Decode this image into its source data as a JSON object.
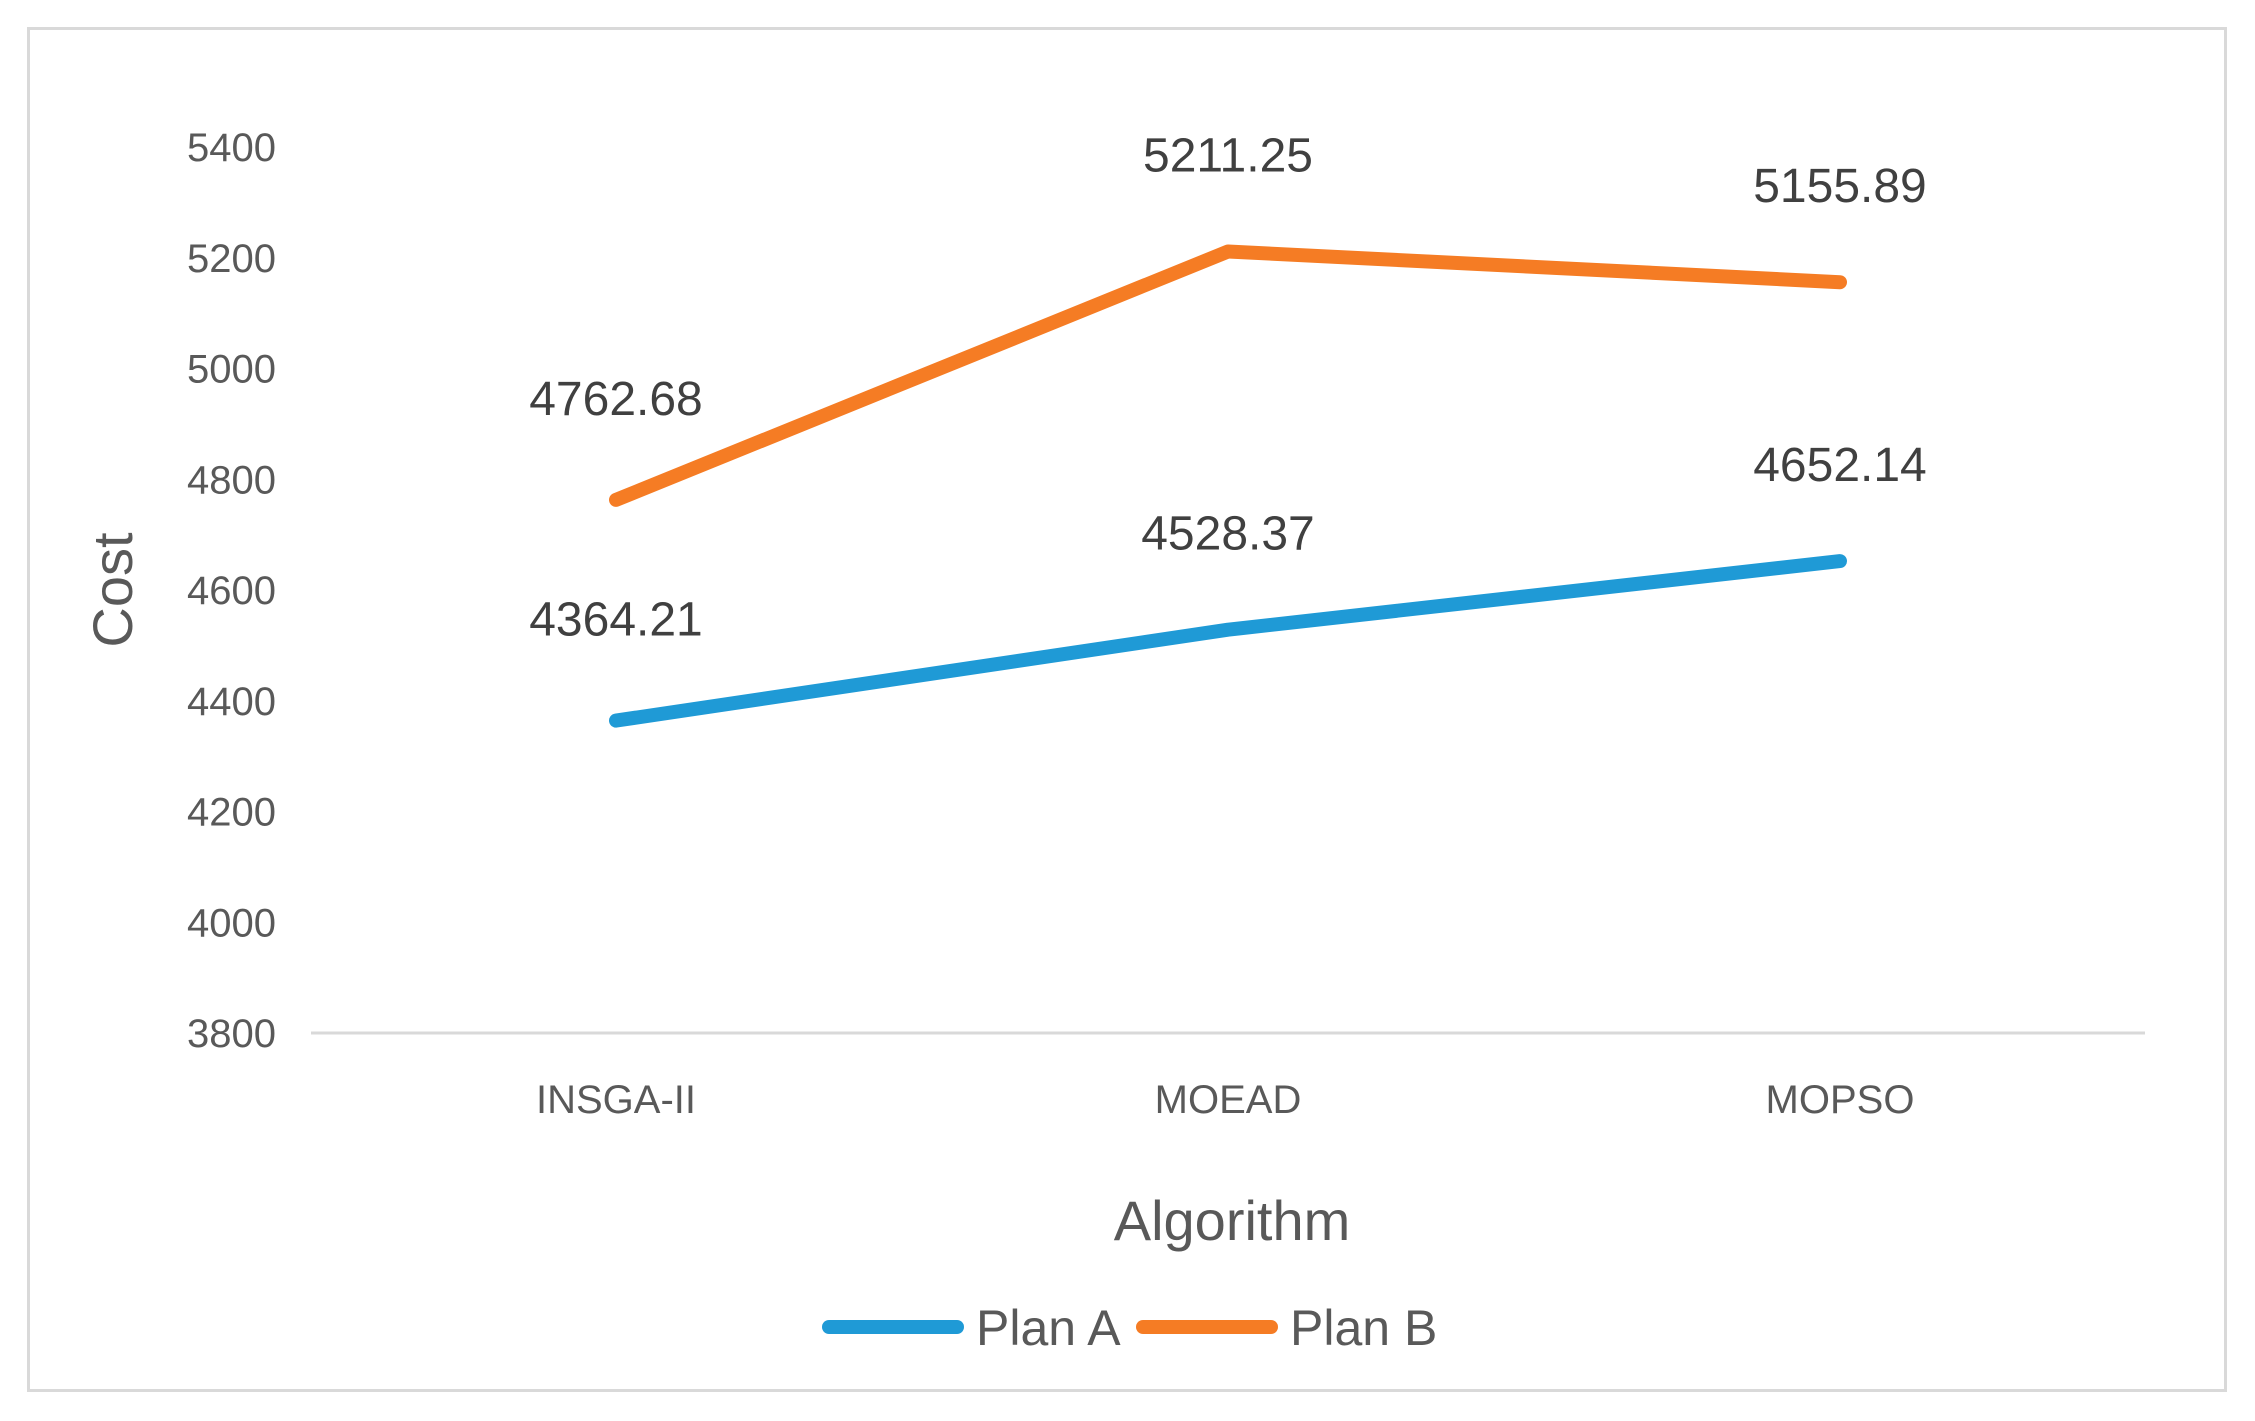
{
  "chart_data": {
    "type": "line",
    "title": "",
    "xlabel": "Algorithm",
    "ylabel": "Cost",
    "categories": [
      "INSGA-II",
      "MOEAD",
      "MOPSO"
    ],
    "ylim": [
      3800,
      5400
    ],
    "yticks": [
      "3800",
      "4000",
      "4200",
      "4400",
      "4600",
      "4800",
      "5000",
      "5200",
      "5400"
    ],
    "grid": false,
    "legend_position": "bottom",
    "series": [
      {
        "name": "Plan A",
        "color": "#1f9ad6",
        "values": [
          4364.21,
          4528.37,
          4652.14
        ],
        "labels": [
          "4364.21",
          "4528.37",
          "4652.14"
        ]
      },
      {
        "name": "Plan B",
        "color": "#f57c24",
        "values": [
          4762.68,
          5211.25,
          5155.89
        ],
        "labels": [
          "4762.68",
          "5211.25",
          "5155.89"
        ]
      }
    ]
  }
}
